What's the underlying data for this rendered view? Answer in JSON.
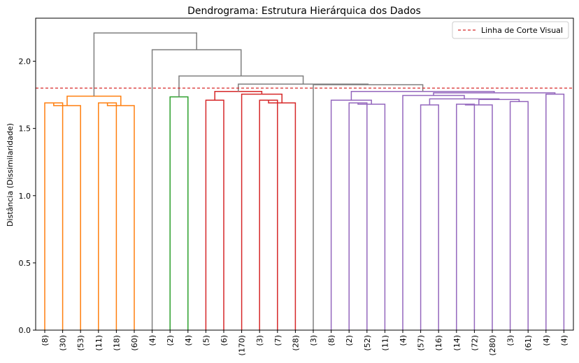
{
  "chart_data": {
    "type": "dendrogram",
    "title": "Dendrograma: Estrutura Hierárquica dos Dados",
    "xlabel": "",
    "ylabel": "Distância (Dissimilaridade)",
    "ylim": [
      0.0,
      2.32
    ],
    "yticks": [
      0.0,
      0.5,
      1.0,
      1.5,
      2.0
    ],
    "ytick_labels": [
      "0.0",
      "0.5",
      "1.0",
      "1.5",
      "2.0"
    ],
    "grid": false,
    "legend": {
      "placement": "upper-right",
      "entries": [
        {
          "label": "Linha de Corte Visual",
          "color": "#d62728",
          "style": "dashed"
        }
      ]
    },
    "cut_line": {
      "y": 1.8,
      "color": "#d62728"
    },
    "leaf_labels": [
      "(8)",
      "(30)",
      "(53)",
      "(11)",
      "(18)",
      "(60)",
      "(4)",
      "(2)",
      "(4)",
      "(5)",
      "(6)",
      "(170)",
      "(3)",
      "(7)",
      "(28)",
      "(3)",
      "(8)",
      "(2)",
      "(52)",
      "(11)",
      "(4)",
      "(57)",
      "(16)",
      "(14)",
      "(72)",
      "(280)",
      "(3)",
      "(61)",
      "(4)",
      "(4)"
    ],
    "colors": {
      "orange": "#ff7f0e",
      "green": "#2ca02c",
      "red": "#d62728",
      "purple": "#9467bd",
      "gray": "#7f7f7f"
    },
    "merges": [
      {
        "left": {
          "leaf": 0
        },
        "right": {
          "leaf": 1
        },
        "height": 1.69,
        "color": "orange"
      },
      {
        "left": {
          "leaf": 3
        },
        "right": {
          "leaf": 4
        },
        "height": 1.69,
        "color": "orange"
      },
      {
        "left": {
          "merge": 0
        },
        "right": {
          "leaf": 2
        },
        "height": 1.67,
        "color": "orange"
      },
      {
        "left": {
          "merge": 1
        },
        "right": {
          "leaf": 5
        },
        "height": 1.67,
        "color": "orange"
      },
      {
        "left": {
          "merge": 2
        },
        "right": {
          "merge": 3
        },
        "height": 1.74,
        "color": "orange"
      },
      {
        "left": {
          "leaf": 7
        },
        "right": {
          "leaf": 8
        },
        "height": 1.735,
        "color": "green"
      },
      {
        "left": {
          "leaf": 9
        },
        "right": {
          "leaf": 10
        },
        "height": 1.71,
        "color": "red"
      },
      {
        "left": {
          "leaf": 12
        },
        "right": {
          "leaf": 13
        },
        "height": 1.71,
        "color": "red"
      },
      {
        "left": {
          "merge": 7
        },
        "right": {
          "leaf": 14
        },
        "height": 1.69,
        "color": "red"
      },
      {
        "left": {
          "leaf": 11
        },
        "right": {
          "merge": 8
        },
        "height": 1.755,
        "color": "red"
      },
      {
        "left": {
          "merge": 6
        },
        "right": {
          "merge": 9
        },
        "height": 1.775,
        "color": "red"
      },
      {
        "left": {
          "leaf": 17
        },
        "right": {
          "leaf": 18
        },
        "height": 1.69,
        "color": "purple"
      },
      {
        "left": {
          "merge": 11
        },
        "right": {
          "leaf": 19
        },
        "height": 1.68,
        "color": "purple"
      },
      {
        "left": {
          "leaf": 16
        },
        "right": {
          "merge": 12
        },
        "height": 1.71,
        "color": "purple"
      },
      {
        "left": {
          "leaf": 23
        },
        "right": {
          "leaf": 24
        },
        "height": 1.68,
        "color": "purple"
      },
      {
        "left": {
          "merge": 14
        },
        "right": {
          "leaf": 25
        },
        "height": 1.675,
        "color": "purple"
      },
      {
        "left": {
          "leaf": 21
        },
        "right": {
          "leaf": 22
        },
        "height": 1.675,
        "color": "purple"
      },
      {
        "left": {
          "leaf": 26
        },
        "right": {
          "leaf": 27
        },
        "height": 1.7,
        "color": "purple"
      },
      {
        "left": {
          "merge": 15
        },
        "right": {
          "merge": 17
        },
        "height": 1.715,
        "color": "purple"
      },
      {
        "left": {
          "merge": 16
        },
        "right": {
          "merge": 18
        },
        "height": 1.72,
        "color": "purple"
      },
      {
        "left": {
          "leaf": 20
        },
        "right": {
          "merge": 19
        },
        "height": 1.745,
        "color": "purple"
      },
      {
        "left": {
          "leaf": 28
        },
        "right": {
          "leaf": 29
        },
        "height": 1.755,
        "color": "purple"
      },
      {
        "left": {
          "merge": 20
        },
        "right": {
          "merge": 21
        },
        "height": 1.765,
        "color": "purple"
      },
      {
        "left": {
          "merge": 13
        },
        "right": {
          "merge": 22
        },
        "height": 1.775,
        "color": "purple"
      },
      {
        "left": {
          "leaf": 15
        },
        "right": {
          "merge": 23
        },
        "height": 1.825,
        "color": "gray"
      },
      {
        "left": {
          "merge": 10
        },
        "right": {
          "merge": 24
        },
        "height": 1.83,
        "color": "gray"
      },
      {
        "left": {
          "merge": 5
        },
        "right": {
          "merge": 25
        },
        "height": 1.89,
        "color": "gray"
      },
      {
        "left": {
          "leaf": 6
        },
        "right": {
          "merge": 26
        },
        "height": 2.085,
        "color": "gray"
      },
      {
        "left": {
          "merge": 4
        },
        "right": {
          "merge": 27
        },
        "height": 2.21,
        "color": "gray"
      }
    ]
  }
}
